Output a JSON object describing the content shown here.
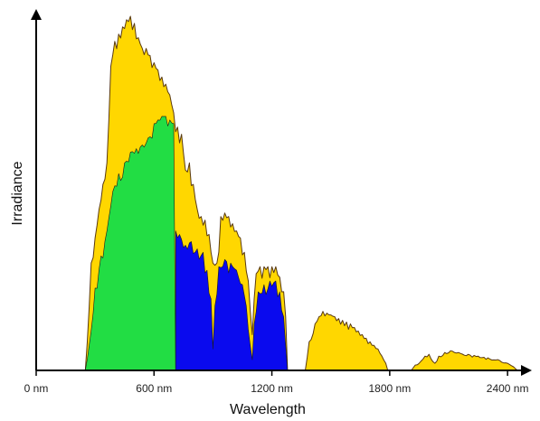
{
  "chart_data": {
    "type": "area",
    "title": "",
    "xlabel": "Wavelength",
    "ylabel": "Irradiance",
    "xlim": [
      0,
      2450
    ],
    "ylim": [
      0,
      1.0
    ],
    "grid": false,
    "y_ticks_shown": false,
    "x_ticks": [
      {
        "value": 0,
        "label": "0 nm"
      },
      {
        "value": 600,
        "label": "600 nm"
      },
      {
        "value": 1200,
        "label": "1200 nm"
      },
      {
        "value": 1800,
        "label": "1800 nm"
      },
      {
        "value": 2400,
        "label": "2400 nm"
      }
    ],
    "series": [
      {
        "role": "total spectrum",
        "color": "#FFD700",
        "segments": [
          [
            [
              250,
              0
            ],
            [
              260,
              0.08
            ],
            [
              280,
              0.3
            ],
            [
              300,
              0.37
            ],
            [
              320,
              0.45
            ],
            [
              340,
              0.52
            ],
            [
              360,
              0.58
            ],
            [
              380,
              0.85
            ],
            [
              400,
              0.92
            ],
            [
              420,
              0.94
            ],
            [
              440,
              0.96
            ],
            [
              460,
              0.98
            ],
            [
              480,
              0.99
            ],
            [
              500,
              0.97
            ],
            [
              520,
              0.93
            ],
            [
              540,
              0.9
            ],
            [
              560,
              0.9
            ],
            [
              580,
              0.88
            ],
            [
              600,
              0.86
            ],
            [
              620,
              0.84
            ],
            [
              640,
              0.82
            ],
            [
              660,
              0.8
            ],
            [
              680,
              0.77
            ],
            [
              700,
              0.72
            ],
            [
              720,
              0.68
            ],
            [
              740,
              0.66
            ],
            [
              760,
              0.56
            ],
            [
              780,
              0.58
            ],
            [
              800,
              0.52
            ],
            [
              820,
              0.45
            ],
            [
              840,
              0.43
            ],
            [
              860,
              0.42
            ],
            [
              880,
              0.38
            ],
            [
              900,
              0.3
            ],
            [
              920,
              0.3
            ],
            [
              940,
              0.43
            ],
            [
              960,
              0.44
            ],
            [
              980,
              0.43
            ],
            [
              1000,
              0.41
            ],
            [
              1020,
              0.39
            ],
            [
              1040,
              0.37
            ],
            [
              1060,
              0.33
            ],
            [
              1080,
              0.25
            ],
            [
              1100,
              0.1
            ],
            [
              1110,
              0.2
            ],
            [
              1120,
              0.27
            ],
            [
              1140,
              0.29
            ],
            [
              1160,
              0.29
            ],
            [
              1180,
              0.29
            ],
            [
              1200,
              0.29
            ],
            [
              1220,
              0.29
            ],
            [
              1240,
              0.26
            ],
            [
              1260,
              0.22
            ],
            [
              1270,
              0.15
            ],
            [
              1280,
              0
            ]
          ],
          [
            [
              1370,
              0
            ],
            [
              1390,
              0.08
            ],
            [
              1420,
              0.13
            ],
            [
              1440,
              0.15
            ],
            [
              1460,
              0.165
            ],
            [
              1480,
              0.16
            ],
            [
              1500,
              0.155
            ],
            [
              1520,
              0.15
            ],
            [
              1540,
              0.145
            ],
            [
              1560,
              0.14
            ],
            [
              1580,
              0.135
            ],
            [
              1600,
              0.13
            ],
            [
              1620,
              0.12
            ],
            [
              1640,
              0.11
            ],
            [
              1660,
              0.1
            ],
            [
              1680,
              0.09
            ],
            [
              1700,
              0.08
            ],
            [
              1720,
              0.07
            ],
            [
              1740,
              0.06
            ],
            [
              1760,
              0.04
            ],
            [
              1780,
              0.02
            ],
            [
              1790,
              0
            ]
          ],
          [
            [
              1910,
              0
            ],
            [
              1930,
              0.015
            ],
            [
              1950,
              0.02
            ],
            [
              1980,
              0.04
            ],
            [
              2000,
              0.045
            ],
            [
              2030,
              0.02
            ],
            [
              2050,
              0.04
            ],
            [
              2080,
              0.05
            ],
            [
              2110,
              0.055
            ],
            [
              2150,
              0.05
            ],
            [
              2200,
              0.045
            ],
            [
              2250,
              0.04
            ],
            [
              2300,
              0.035
            ],
            [
              2350,
              0.03
            ],
            [
              2400,
              0.02
            ],
            [
              2430,
              0.01
            ],
            [
              2450,
              0
            ]
          ]
        ]
      },
      {
        "role": "visible band",
        "color": "#22DD44",
        "segments": [
          [
            [
              250,
              0
            ],
            [
              270,
              0.07
            ],
            [
              300,
              0.23
            ],
            [
              330,
              0.32
            ],
            [
              360,
              0.39
            ],
            [
              390,
              0.5
            ],
            [
              420,
              0.55
            ],
            [
              450,
              0.58
            ],
            [
              480,
              0.61
            ],
            [
              510,
              0.62
            ],
            [
              540,
              0.63
            ],
            [
              570,
              0.65
            ],
            [
              600,
              0.69
            ],
            [
              620,
              0.7
            ],
            [
              640,
              0.71
            ],
            [
              660,
              0.71
            ],
            [
              680,
              0.7
            ],
            [
              700,
              0.69
            ],
            [
              710,
              0
            ]
          ]
        ]
      },
      {
        "role": "near-infrared band",
        "color": "#0A0AEE",
        "segments": [
          [
            [
              710,
              0
            ],
            [
              710,
              0.39
            ],
            [
              730,
              0.38
            ],
            [
              760,
              0.35
            ],
            [
              790,
              0.36
            ],
            [
              820,
              0.34
            ],
            [
              850,
              0.33
            ],
            [
              870,
              0.28
            ],
            [
              890,
              0.2
            ],
            [
              900,
              0.06
            ],
            [
              910,
              0.18
            ],
            [
              930,
              0.29
            ],
            [
              960,
              0.31
            ],
            [
              990,
              0.3
            ],
            [
              1020,
              0.28
            ],
            [
              1050,
              0.24
            ],
            [
              1070,
              0.18
            ],
            [
              1090,
              0.07
            ],
            [
              1100,
              0.03
            ],
            [
              1110,
              0.13
            ],
            [
              1130,
              0.22
            ],
            [
              1160,
              0.24
            ],
            [
              1190,
              0.25
            ],
            [
              1220,
              0.25
            ],
            [
              1240,
              0.22
            ],
            [
              1260,
              0.15
            ],
            [
              1270,
              0.07
            ],
            [
              1280,
              0
            ]
          ]
        ]
      }
    ]
  }
}
